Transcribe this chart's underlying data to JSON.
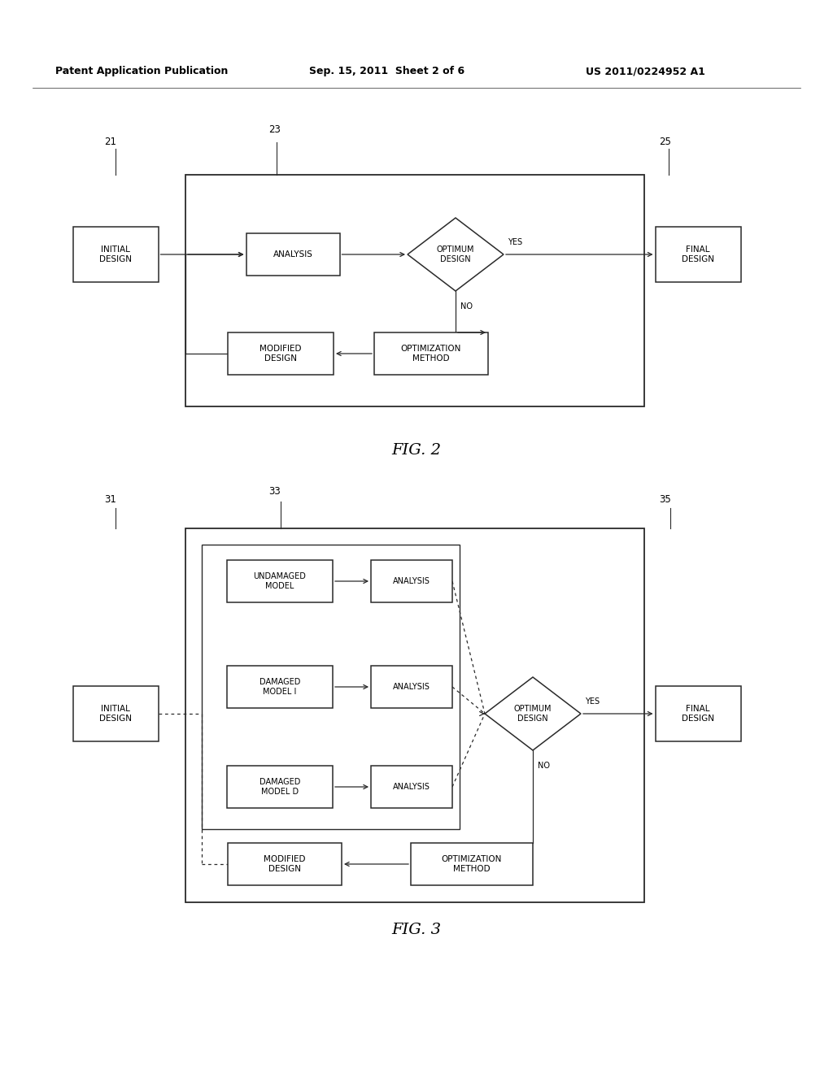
{
  "header_left": "Patent Application Publication",
  "header_mid": "Sep. 15, 2011  Sheet 2 of 6",
  "header_right": "US 2011/0224952 A1",
  "bg_color": "#ffffff",
  "line_color": "#404040",
  "box_fill": "#ffffff"
}
